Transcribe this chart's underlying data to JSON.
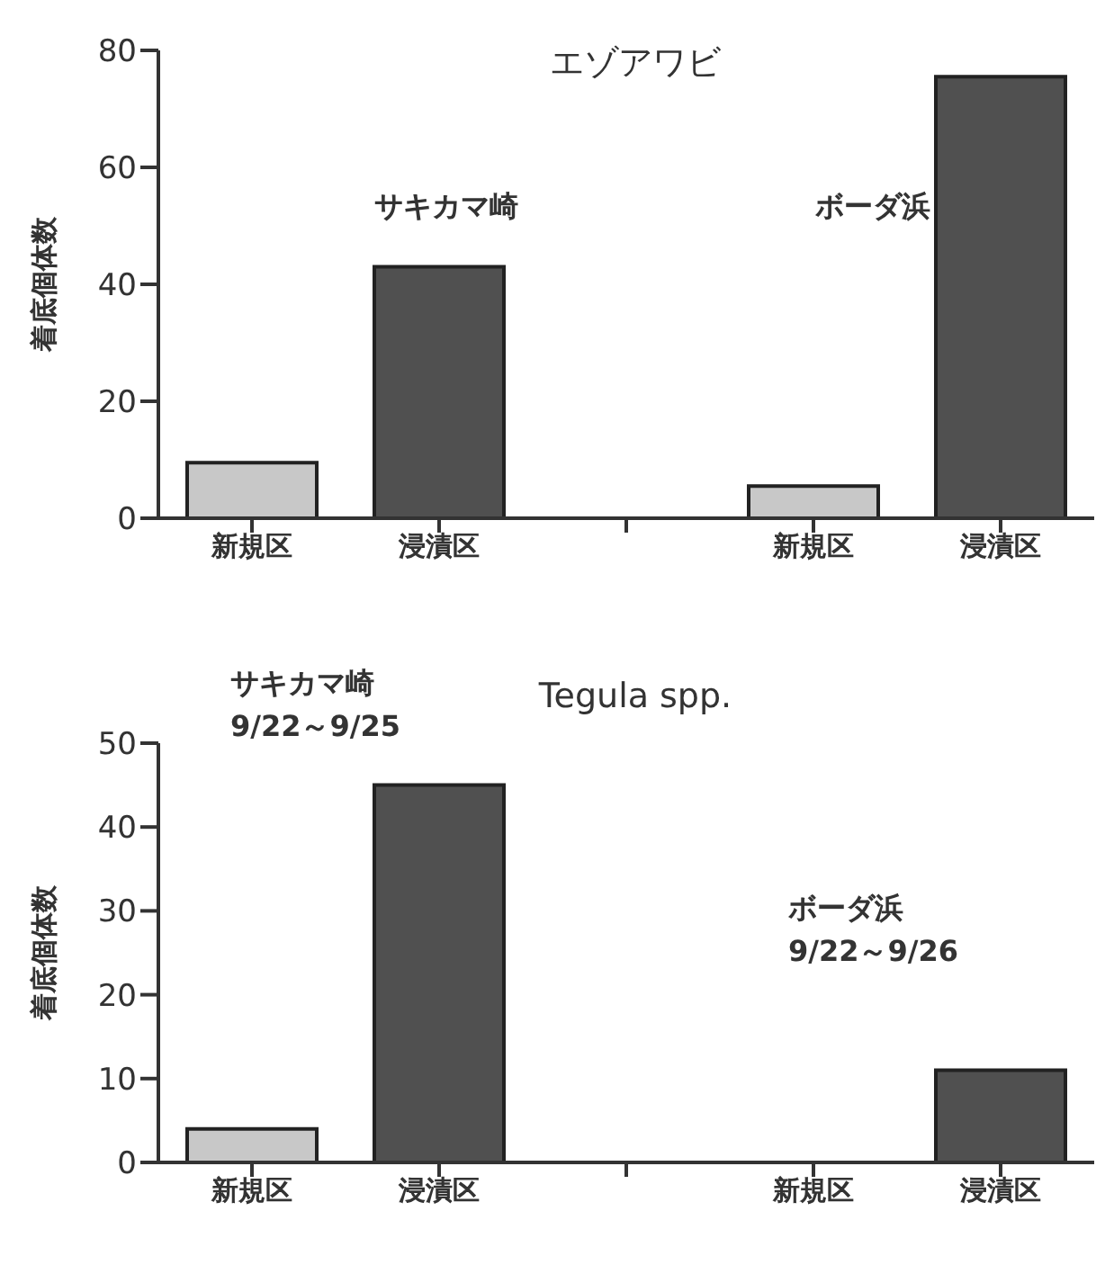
{
  "chart_data": [
    {
      "type": "bar",
      "title": "エゾアワビ",
      "ylabel": "着底個体数",
      "categories": [
        "新規区",
        "浸漬区",
        null,
        "新規区",
        "浸漬区"
      ],
      "values": [
        9.5,
        43,
        null,
        5.5,
        75.5
      ],
      "colors": [
        "#c8c8c8",
        "#505050",
        "#c8c8c8",
        "#c8c8c8",
        "#505050"
      ],
      "ylim": [
        0,
        80
      ],
      "yticks": [
        0,
        20,
        40,
        60,
        80
      ],
      "grid": false,
      "legend": false,
      "annotations": [
        "サキカマ崎",
        "ボーダ浜"
      ]
    },
    {
      "type": "bar",
      "title": "Tegula spp.",
      "ylabel": "着底個体数",
      "categories": [
        "新規区",
        "浸漬区",
        null,
        "新規区",
        "浸漬区"
      ],
      "values": [
        4,
        45,
        null,
        0,
        11
      ],
      "colors": [
        "#c8c8c8",
        "#505050",
        "#c8c8c8",
        "#c8c8c8",
        "#505050"
      ],
      "ylim": [
        0,
        50
      ],
      "yticks": [
        0,
        10,
        20,
        30,
        40,
        50
      ],
      "grid": false,
      "legend": false,
      "annotations": [
        "サキカマ崎\n9/22～9/25",
        "ボーダ浜\n9/22～9/26"
      ]
    }
  ]
}
